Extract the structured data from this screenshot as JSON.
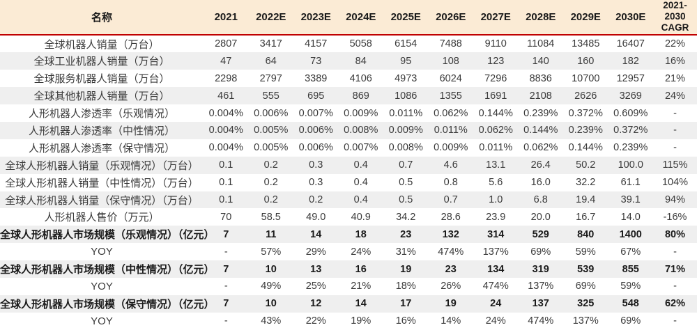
{
  "chart_data": {
    "type": "table",
    "header": {
      "name_label": "名称",
      "year_columns": [
        "2021",
        "2022E",
        "2023E",
        "2024E",
        "2025E",
        "2026E",
        "2027E",
        "2028E",
        "2029E",
        "2030E"
      ],
      "cagr_line1": "2021-2030",
      "cagr_line2": "CAGR"
    },
    "rows": [
      {
        "label": "全球机器人销量（万台）",
        "values": [
          "2807",
          "3417",
          "4157",
          "5058",
          "6154",
          "7488",
          "9110",
          "11084",
          "13485",
          "16407"
        ],
        "cagr": "22%",
        "bold": false
      },
      {
        "label": "全球工业机器人销量（万台）",
        "values": [
          "47",
          "64",
          "73",
          "84",
          "95",
          "108",
          "123",
          "140",
          "160",
          "182"
        ],
        "cagr": "16%",
        "bold": false
      },
      {
        "label": "全球服务机器人销量（万台）",
        "values": [
          "2298",
          "2797",
          "3389",
          "4106",
          "4973",
          "6024",
          "7296",
          "8836",
          "10700",
          "12957"
        ],
        "cagr": "21%",
        "bold": false
      },
      {
        "label": "全球其他机器人销量（万台）",
        "values": [
          "461",
          "555",
          "695",
          "869",
          "1086",
          "1355",
          "1691",
          "2108",
          "2626",
          "3269"
        ],
        "cagr": "24%",
        "bold": false
      },
      {
        "label": "人形机器人渗透率（乐观情况）",
        "values": [
          "0.004%",
          "0.006%",
          "0.007%",
          "0.009%",
          "0.011%",
          "0.062%",
          "0.144%",
          "0.239%",
          "0.372%",
          "0.609%"
        ],
        "cagr": "-",
        "bold": false
      },
      {
        "label": "人形机器人渗透率（中性情况）",
        "values": [
          "0.004%",
          "0.005%",
          "0.006%",
          "0.008%",
          "0.009%",
          "0.011%",
          "0.062%",
          "0.144%",
          "0.239%",
          "0.372%"
        ],
        "cagr": "-",
        "bold": false
      },
      {
        "label": "人形机器人渗透率（保守情况）",
        "values": [
          "0.004%",
          "0.005%",
          "0.006%",
          "0.007%",
          "0.008%",
          "0.009%",
          "0.011%",
          "0.062%",
          "0.144%",
          "0.239%"
        ],
        "cagr": "-",
        "bold": false
      },
      {
        "label": "全球人形机器人销量（乐观情况）（万台）",
        "values": [
          "0.1",
          "0.2",
          "0.3",
          "0.4",
          "0.7",
          "4.6",
          "13.1",
          "26.4",
          "50.2",
          "100.0"
        ],
        "cagr": "115%",
        "bold": false
      },
      {
        "label": "全球人形机器人销量（中性情况）（万台）",
        "values": [
          "0.1",
          "0.2",
          "0.3",
          "0.4",
          "0.5",
          "0.8",
          "5.6",
          "16.0",
          "32.2",
          "61.1"
        ],
        "cagr": "104%",
        "bold": false
      },
      {
        "label": "全球人形机器人销量（保守情况）（万台）",
        "values": [
          "0.1",
          "0.2",
          "0.2",
          "0.4",
          "0.5",
          "0.7",
          "1.0",
          "6.8",
          "19.4",
          "39.1"
        ],
        "cagr": "94%",
        "bold": false
      },
      {
        "label": "人形机器人售价（万元）",
        "values": [
          "70",
          "58.5",
          "49.0",
          "40.9",
          "34.2",
          "28.6",
          "23.9",
          "20.0",
          "16.7",
          "14.0"
        ],
        "cagr": "-16%",
        "bold": false
      },
      {
        "label": "全球人形机器人市场规模（乐观情况）（亿元）",
        "values": [
          "7",
          "11",
          "14",
          "18",
          "23",
          "132",
          "314",
          "529",
          "840",
          "1400"
        ],
        "cagr": "80%",
        "bold": true
      },
      {
        "label": "YOY",
        "values": [
          "-",
          "57%",
          "29%",
          "24%",
          "31%",
          "474%",
          "137%",
          "69%",
          "59%",
          "67%"
        ],
        "cagr": "-",
        "bold": false
      },
      {
        "label": "全球人形机器人市场规模（中性情况）（亿元）",
        "values": [
          "7",
          "10",
          "13",
          "16",
          "19",
          "23",
          "134",
          "319",
          "539",
          "855"
        ],
        "cagr": "71%",
        "bold": true
      },
      {
        "label": "YOY",
        "values": [
          "-",
          "49%",
          "25%",
          "21%",
          "18%",
          "26%",
          "474%",
          "137%",
          "69%",
          "59%"
        ],
        "cagr": "-",
        "bold": false
      },
      {
        "label": "全球人形机器人市场规模（保守情况）（亿元）",
        "values": [
          "7",
          "10",
          "12",
          "14",
          "17",
          "19",
          "24",
          "137",
          "325",
          "548"
        ],
        "cagr": "62%",
        "bold": true
      },
      {
        "label": "YOY",
        "values": [
          "-",
          "43%",
          "22%",
          "19%",
          "16%",
          "14%",
          "24%",
          "474%",
          "137%",
          "69%"
        ],
        "cagr": "-",
        "bold": false
      }
    ],
    "colors": {
      "header_background": "#FBEBD5",
      "header_divider_red": "#C00000",
      "row_stripe_gray": "#EFEFEF",
      "body_text": "#3a3a3a"
    }
  }
}
